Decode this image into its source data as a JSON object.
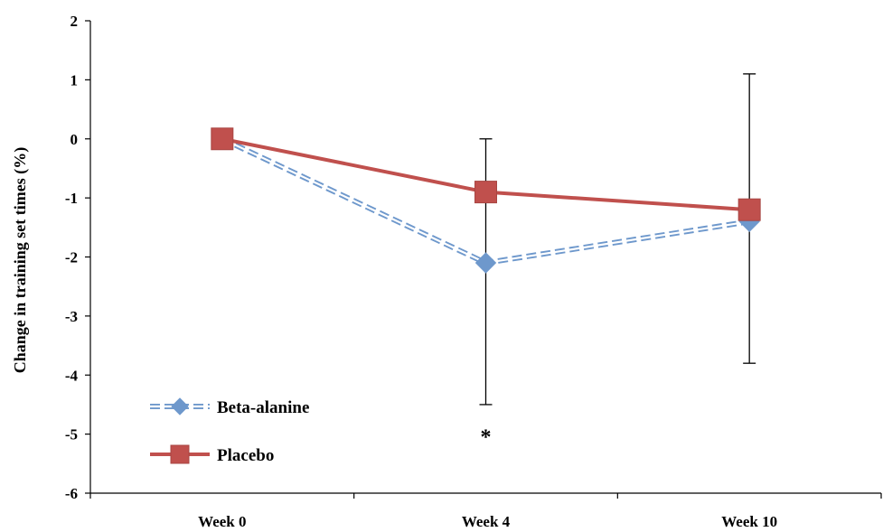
{
  "chart_data": {
    "type": "line",
    "title": "",
    "xlabel": "",
    "ylabel": "Change in training set times (%)",
    "ylim": [
      -6,
      2
    ],
    "yticks": [
      -6,
      -5,
      -4,
      -3,
      -2,
      -1,
      0,
      1,
      2
    ],
    "categories": [
      "Week 0",
      "Week 4",
      "Week 10"
    ],
    "grid": false,
    "legend_position": "bottom-left",
    "series": [
      {
        "name": "Beta-alanine",
        "values": [
          0,
          -2.1,
          -1.4
        ],
        "color": "#6E98CC",
        "marker": "diamond",
        "line_style": "dashed"
      },
      {
        "name": "Placebo",
        "values": [
          0,
          -0.9,
          -1.2
        ],
        "color": "#C0504D",
        "marker": "square",
        "line_style": "solid"
      }
    ],
    "error_bars": [
      {
        "category": "Week 4",
        "low": -4.5,
        "high": 0
      },
      {
        "category": "Week 10",
        "low": -3.8,
        "high": 1.1
      }
    ],
    "annotations": [
      {
        "text": "*",
        "category": "Week 4",
        "y": -4.95
      }
    ]
  }
}
